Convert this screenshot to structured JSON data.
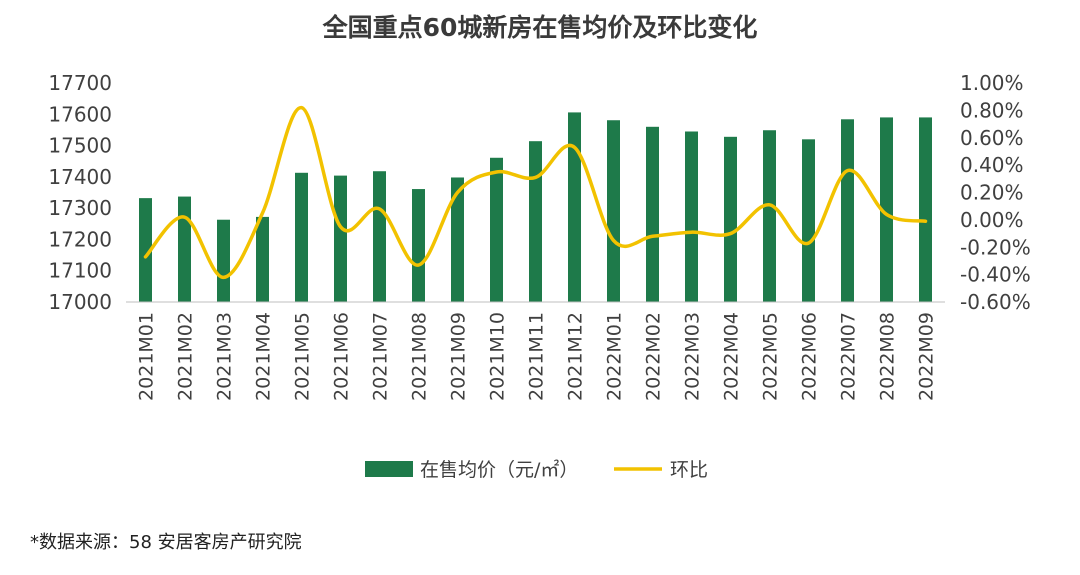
{
  "chart_data": {
    "type": "bar",
    "title": "全国重点60城新房在售均价及环比变化",
    "categories": [
      "2021M01",
      "2021M02",
      "2021M03",
      "2021M04",
      "2021M05",
      "2021M06",
      "2021M07",
      "2021M08",
      "2021M09",
      "2021M10",
      "2021M11",
      "2021M12",
      "2022M01",
      "2022M02",
      "2022M03",
      "2022M04",
      "2022M05",
      "2022M06",
      "2022M07",
      "2022M08",
      "2022M09"
    ],
    "series": [
      {
        "name": "在售均价（元/㎡）",
        "type": "bar",
        "axis": "left",
        "color": "#1e7a4a",
        "values": [
          17332,
          17337,
          17263,
          17272,
          17413,
          17404,
          17418,
          17361,
          17398,
          17461,
          17514,
          17606,
          17581,
          17560,
          17545,
          17528,
          17549,
          17520,
          17584,
          17590,
          17590
        ]
      },
      {
        "name": "环比",
        "type": "line",
        "axis": "right",
        "color": "#f2c200",
        "values": [
          -0.27,
          0.02,
          -0.42,
          0.05,
          0.82,
          -0.05,
          0.08,
          -0.33,
          0.2,
          0.35,
          0.31,
          0.53,
          -0.15,
          -0.12,
          -0.09,
          -0.1,
          0.11,
          -0.17,
          0.36,
          0.04,
          -0.01
        ]
      }
    ],
    "y_left": {
      "min": 17000,
      "max": 17700,
      "ticks": [
        17000,
        17100,
        17200,
        17300,
        17400,
        17500,
        17600,
        17700
      ]
    },
    "y_right": {
      "min": -0.6,
      "max": 1.0,
      "ticks": [
        -0.6,
        -0.4,
        -0.2,
        0.0,
        0.2,
        0.4,
        0.6,
        0.8,
        1.0
      ],
      "tick_labels": [
        "-0.60%",
        "-0.40%",
        "-0.20%",
        "0.00%",
        "0.20%",
        "0.40%",
        "0.60%",
        "0.80%",
        "1.00%"
      ]
    },
    "grid": false,
    "legend_position": "bottom"
  },
  "source_note": "*数据来源：58 安居客房产研究院"
}
